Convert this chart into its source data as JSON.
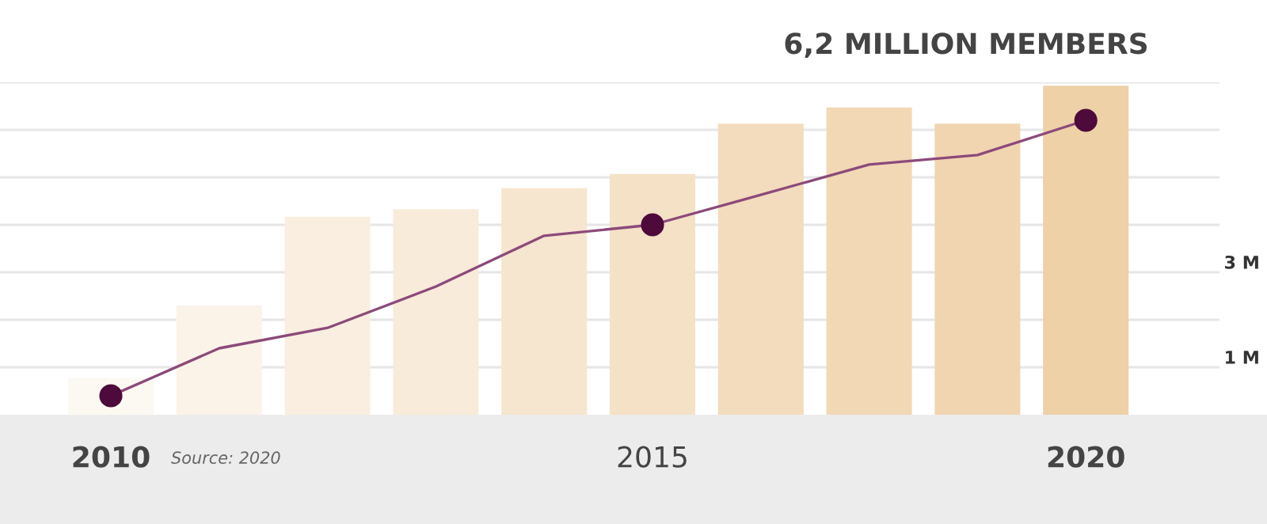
{
  "chart_data": {
    "type": "bar",
    "categories": [
      "2010",
      null,
      null,
      null,
      null,
      "2015",
      null,
      null,
      null,
      "2020"
    ],
    "series": [
      {
        "colors": [
          "#fcf8f2",
          "#fbf3e8",
          "#f9eedf",
          "#f8ebd9",
          "#f6e5cf",
          "#f4e1c6",
          "#f3dcbd",
          "#f2d8b5",
          "#f1d5b0",
          "#efd1a8"
        ],
        "values": [
          0.77,
          2.3,
          4.17,
          4.33,
          4.77,
          5.07,
          6.13,
          6.47,
          6.13,
          6.93
        ]
      },
      {
        "type": "line",
        "color": "#8c4a7a",
        "values": [
          0.4,
          1.4,
          1.83,
          2.7,
          3.77,
          4.0,
          4.63,
          5.27,
          5.47,
          6.2
        ]
      },
      {
        "type": "scatter",
        "color": "#4d0a3a",
        "marker": "circle",
        "values": [
          0.4,
          null,
          null,
          null,
          null,
          4.0,
          null,
          null,
          null,
          6.2
        ]
      }
    ],
    "ylim": [
      0,
      7
    ],
    "yticks": [
      {
        "value": 1,
        "label": "1 M"
      },
      {
        "value": 2,
        "label": null
      },
      {
        "value": 3,
        "label": "3 M"
      },
      {
        "value": 4,
        "label": null
      },
      {
        "value": 5,
        "label": null
      },
      {
        "value": 6,
        "label": null
      },
      {
        "value": 7,
        "label": null
      }
    ],
    "grid": "y",
    "annotations": [
      "6,2 MILLION MEMBERS",
      "Source: 2020"
    ]
  }
}
